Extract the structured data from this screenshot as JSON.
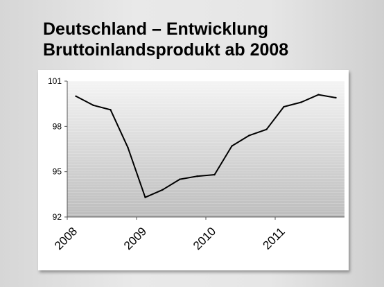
{
  "slide": {
    "title_line1": "Deutschland – Entwicklung",
    "title_line2": "Bruttoinlandsprodukt ab 2008"
  },
  "chart_data": {
    "type": "line",
    "title": "",
    "xlabel": "",
    "ylabel": "",
    "xlim": [
      2008,
      2012
    ],
    "ylim": [
      92,
      101
    ],
    "y_ticks": [
      "101",
      "98",
      "95",
      "92"
    ],
    "y_tick_values": [
      101,
      98,
      95,
      92
    ],
    "x_ticks": [
      "2008",
      "2009",
      "2010",
      "2011"
    ],
    "x_tick_values": [
      2008,
      2009,
      2010,
      2011
    ],
    "grid": false,
    "legend": "none",
    "line_color": "#000000",
    "plot_background": "gradient light-to-dark gray",
    "series": [
      {
        "x": [
          2008.125,
          2008.375,
          2008.625,
          2008.875,
          2009.125,
          2009.375,
          2009.625,
          2009.875,
          2010.125,
          2010.375,
          2010.625,
          2010.875,
          2011.125,
          2011.375,
          2011.625,
          2011.875
        ],
        "values": [
          100.0,
          99.4,
          99.1,
          96.6,
          93.3,
          93.8,
          94.5,
          94.7,
          94.8,
          96.7,
          97.4,
          97.8,
          99.3,
          99.6,
          100.1,
          99.9
        ]
      }
    ]
  }
}
